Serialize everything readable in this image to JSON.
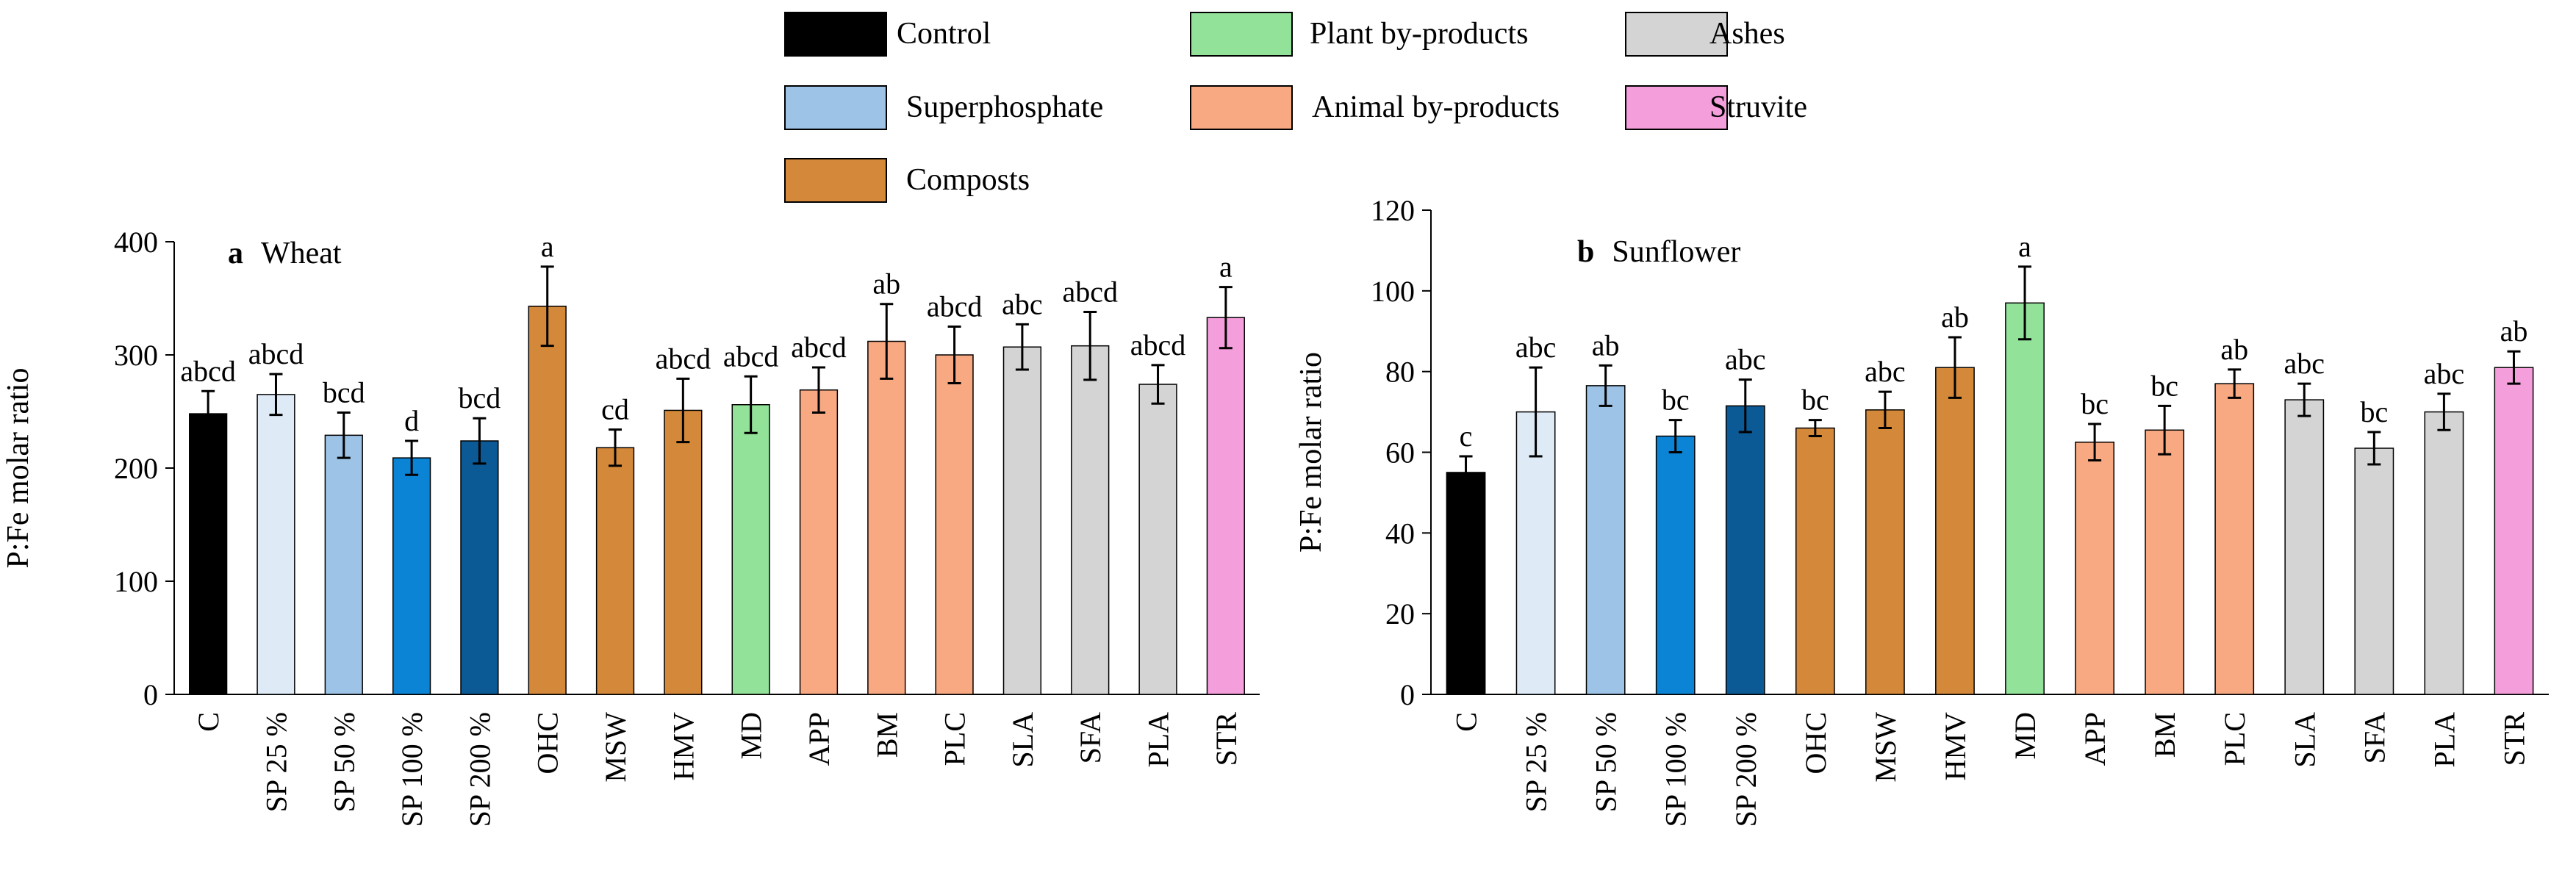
{
  "legend": {
    "items": [
      {
        "label": "Control",
        "color": "#000000"
      },
      {
        "label": "Superphosphate",
        "color": "#9dc3e6"
      },
      {
        "label": "Composts",
        "color": "#d4893a"
      },
      {
        "label": "Plant by-products",
        "color": "#93e29a"
      },
      {
        "label": "Animal by-products",
        "color": "#f8a982"
      },
      {
        "label": "Ashes",
        "color": "#d4d4d4"
      },
      {
        "label": "Struvite",
        "color": "#f59edc"
      }
    ]
  },
  "chart_data": [
    {
      "type": "bar",
      "panel": "a",
      "title": "Wheat",
      "xlabel": "",
      "ylabel": "P:Fe molar ratio",
      "ylim": [
        0,
        400
      ],
      "yticks": [
        0,
        100,
        200,
        300,
        400
      ],
      "categories": [
        "C",
        "SP 25 %",
        "SP 50 %",
        "SP 100 %",
        "SP 200 %",
        "OHC",
        "MSW",
        "HMV",
        "MD",
        "APP",
        "BM",
        "PLC",
        "SLA",
        "SFA",
        "PLA",
        "STR"
      ],
      "values": [
        248,
        265,
        229,
        209,
        224,
        343,
        218,
        251,
        256,
        269,
        312,
        300,
        307,
        308,
        274,
        333
      ],
      "errors": [
        20,
        18,
        20,
        15,
        20,
        35,
        16,
        28,
        25,
        20,
        33,
        25,
        20,
        30,
        17,
        27
      ],
      "letters": [
        "abcd",
        "abcd",
        "bcd",
        "d",
        "bcd",
        "a",
        "cd",
        "abcd",
        "abcd",
        "abcd",
        "ab",
        "abcd",
        "abc",
        "abcd",
        "abcd",
        "a"
      ],
      "colors": [
        "#000000",
        "#deebf7",
        "#9dc3e6",
        "#0b84d6",
        "#0b5a96",
        "#d4893a",
        "#d4893a",
        "#d4893a",
        "#93e29a",
        "#f8a982",
        "#f8a982",
        "#f8a982",
        "#d4d4d4",
        "#d4d4d4",
        "#d4d4d4",
        "#f59edc"
      ]
    },
    {
      "type": "bar",
      "panel": "b",
      "title": "Sunflower",
      "xlabel": "",
      "ylabel": "P:Fe molar ratio",
      "ylim": [
        0,
        120
      ],
      "yticks": [
        0,
        20,
        40,
        60,
        80,
        100,
        120
      ],
      "categories": [
        "C",
        "SP 25 %",
        "SP 50 %",
        "SP 100 %",
        "SP 200 %",
        "OHC",
        "MSW",
        "HMV",
        "MD",
        "APP",
        "BM",
        "PLC",
        "SLA",
        "SFA",
        "PLA",
        "STR"
      ],
      "values": [
        55,
        70,
        76.5,
        64,
        71.5,
        66,
        70.5,
        81,
        97,
        62.5,
        65.5,
        77,
        73,
        61,
        70,
        81
      ],
      "errors": [
        4,
        11,
        5,
        4,
        6.5,
        2,
        4.5,
        7.5,
        9,
        4.5,
        6,
        3.5,
        4,
        4,
        4.5,
        4
      ],
      "letters": [
        "c",
        "abc",
        "ab",
        "bc",
        "abc",
        "bc",
        "abc",
        "ab",
        "a",
        "bc",
        "bc",
        "ab",
        "abc",
        "bc",
        "abc",
        "ab"
      ],
      "colors": [
        "#000000",
        "#deebf7",
        "#9dc3e6",
        "#0b84d6",
        "#0b5a96",
        "#d4893a",
        "#d4893a",
        "#d4893a",
        "#93e29a",
        "#f8a982",
        "#f8a982",
        "#f8a982",
        "#d4d4d4",
        "#d4d4d4",
        "#d4d4d4",
        "#f59edc"
      ]
    }
  ]
}
